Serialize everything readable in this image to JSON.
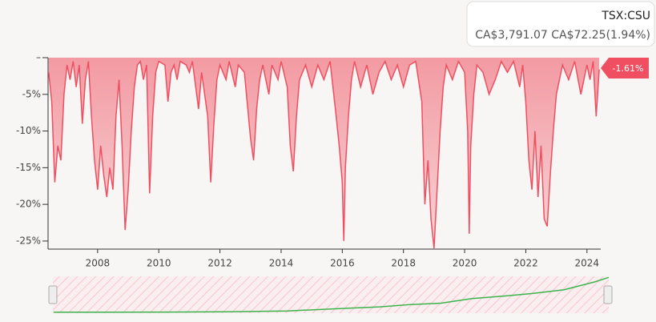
{
  "tooltip": {
    "symbol": "TSX:CSU",
    "price": "CA$3,791.07",
    "change": "CA$72.25(1.94%)"
  },
  "chart_data": {
    "type": "area",
    "color": "#ef4f60",
    "xlim": [
      2006.38,
      2024.45
    ],
    "ylim": [
      -26.1,
      0
    ],
    "xticks": [
      2008,
      2010,
      2012,
      2014,
      2016,
      2018,
      2020,
      2022,
      2024
    ],
    "yticks": [
      {
        "value": 0,
        "label": "–"
      },
      {
        "value": -5,
        "label": "-5%"
      },
      {
        "value": -10,
        "label": "-10%"
      },
      {
        "value": -15,
        "label": "-15%"
      },
      {
        "value": -20,
        "label": "-20%"
      },
      {
        "value": -25,
        "label": "-25%"
      }
    ],
    "last_value_label": "-1.61%",
    "x": [
      2006.4,
      2006.5,
      2006.6,
      2006.7,
      2006.8,
      2006.9,
      2007.0,
      2007.1,
      2007.2,
      2007.3,
      2007.4,
      2007.5,
      2007.6,
      2007.7,
      2007.8,
      2007.9,
      2008.0,
      2008.1,
      2008.2,
      2008.3,
      2008.4,
      2008.5,
      2008.6,
      2008.7,
      2008.8,
      2008.9,
      2009.0,
      2009.1,
      2009.2,
      2009.3,
      2009.4,
      2009.5,
      2009.6,
      2009.7,
      2009.8,
      2009.9,
      2010.0,
      2010.2,
      2010.3,
      2010.4,
      2010.5,
      2010.6,
      2010.7,
      2010.9,
      2011.0,
      2011.1,
      2011.3,
      2011.4,
      2011.6,
      2011.7,
      2011.8,
      2011.9,
      2012.0,
      2012.2,
      2012.3,
      2012.5,
      2012.6,
      2012.8,
      2013.0,
      2013.1,
      2013.2,
      2013.3,
      2013.4,
      2013.6,
      2013.7,
      2013.9,
      2014.0,
      2014.2,
      2014.3,
      2014.4,
      2014.5,
      2014.6,
      2014.8,
      2015.0,
      2015.2,
      2015.4,
      2015.6,
      2015.8,
      2015.9,
      2016.0,
      2016.05,
      2016.1,
      2016.2,
      2016.3,
      2016.4,
      2016.6,
      2016.8,
      2017.0,
      2017.2,
      2017.4,
      2017.6,
      2017.8,
      2018.0,
      2018.2,
      2018.4,
      2018.6,
      2018.7,
      2018.8,
      2018.9,
      2019.0,
      2019.1,
      2019.2,
      2019.3,
      2019.4,
      2019.6,
      2019.8,
      2020.0,
      2020.1,
      2020.15,
      2020.2,
      2020.3,
      2020.4,
      2020.6,
      2020.8,
      2021.0,
      2021.2,
      2021.4,
      2021.6,
      2021.8,
      2021.9,
      2022.0,
      2022.1,
      2022.2,
      2022.3,
      2022.4,
      2022.5,
      2022.6,
      2022.7,
      2022.8,
      2022.9,
      2023.0,
      2023.2,
      2023.4,
      2023.6,
      2023.8,
      2024.0,
      2024.1,
      2024.2,
      2024.3,
      2024.4
    ],
    "values": [
      -2,
      -6,
      -17,
      -12,
      -14,
      -5,
      -1,
      -3,
      -0.5,
      -4,
      -1,
      -9,
      -3,
      -0.5,
      -8,
      -14,
      -18,
      -12,
      -16,
      -19,
      -15,
      -18,
      -8,
      -3,
      -12,
      -23.5,
      -18,
      -10,
      -4,
      -1,
      -0.5,
      -3,
      -1,
      -18.5,
      -8,
      -2,
      -0.5,
      -1,
      -6,
      -2,
      -1,
      -3,
      -0.5,
      -1,
      -2,
      -0.5,
      -7,
      -2,
      -8,
      -17,
      -9,
      -3,
      -1,
      -3,
      -0.5,
      -4,
      -1,
      -2,
      -11,
      -14,
      -7,
      -3,
      -1,
      -5,
      -1,
      -3,
      -0.5,
      -4,
      -12,
      -15.5,
      -8,
      -3,
      -1,
      -4,
      -1,
      -3,
      -0.5,
      -8,
      -12,
      -17,
      -25,
      -15,
      -8,
      -3,
      -0.5,
      -4,
      -1,
      -5,
      -2,
      -0.5,
      -3,
      -1,
      -4,
      -1,
      -0.5,
      -6,
      -20,
      -14,
      -22,
      -26,
      -18,
      -10,
      -4,
      -1,
      -3,
      -0.5,
      -2,
      -10,
      -24,
      -12,
      -5,
      -1,
      -2,
      -5,
      -3,
      -0.5,
      -2,
      -0.5,
      -4,
      -1,
      -6,
      -14,
      -18,
      -10,
      -19,
      -12,
      -22,
      -23,
      -16,
      -10,
      -5,
      -1,
      -3,
      -0.5,
      -5,
      -1,
      -3,
      -0.5,
      -8,
      -1.61
    ],
    "navigator": {
      "color": "#3cb44b",
      "ylim": [
        0,
        3900
      ],
      "x": [
        2006.4,
        2008,
        2010,
        2012,
        2014,
        2015,
        2016,
        2017,
        2018,
        2019,
        2020,
        2021,
        2022,
        2023,
        2024,
        2024.45
      ],
      "values": [
        15,
        20,
        35,
        60,
        160,
        300,
        450,
        600,
        850,
        1000,
        1500,
        1750,
        2050,
        2450,
        3300,
        3791.07
      ]
    }
  }
}
